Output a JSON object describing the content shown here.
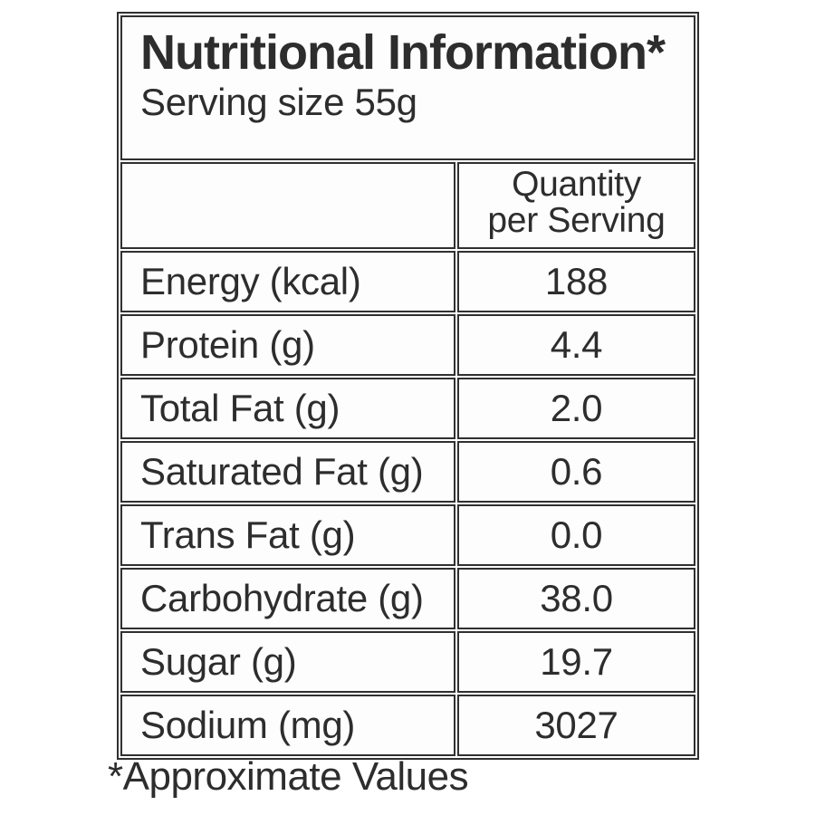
{
  "title": "Nutritional Information*",
  "serving_size": "Serving size 55g",
  "column_header": {
    "line1": "Quantity",
    "line2": "per Serving"
  },
  "rows": [
    {
      "label": "Energy (kcal)",
      "value": "188"
    },
    {
      "label": "Protein (g)",
      "value": "4.4"
    },
    {
      "label": "Total Fat (g)",
      "value": "2.0"
    },
    {
      "label": "Saturated Fat (g)",
      "value": "0.6"
    },
    {
      "label": "Trans Fat (g)",
      "value": "0.0"
    },
    {
      "label": "Carbohydrate (g)",
      "value": "38.0"
    },
    {
      "label": "Sugar (g)",
      "value": "19.7"
    },
    {
      "label": "Sodium (mg)",
      "value": "3027"
    }
  ],
  "footnote": "*Approximate Values",
  "colors": {
    "text": "#2d2d2d",
    "border": "#303030",
    "background": "#ffffff"
  }
}
